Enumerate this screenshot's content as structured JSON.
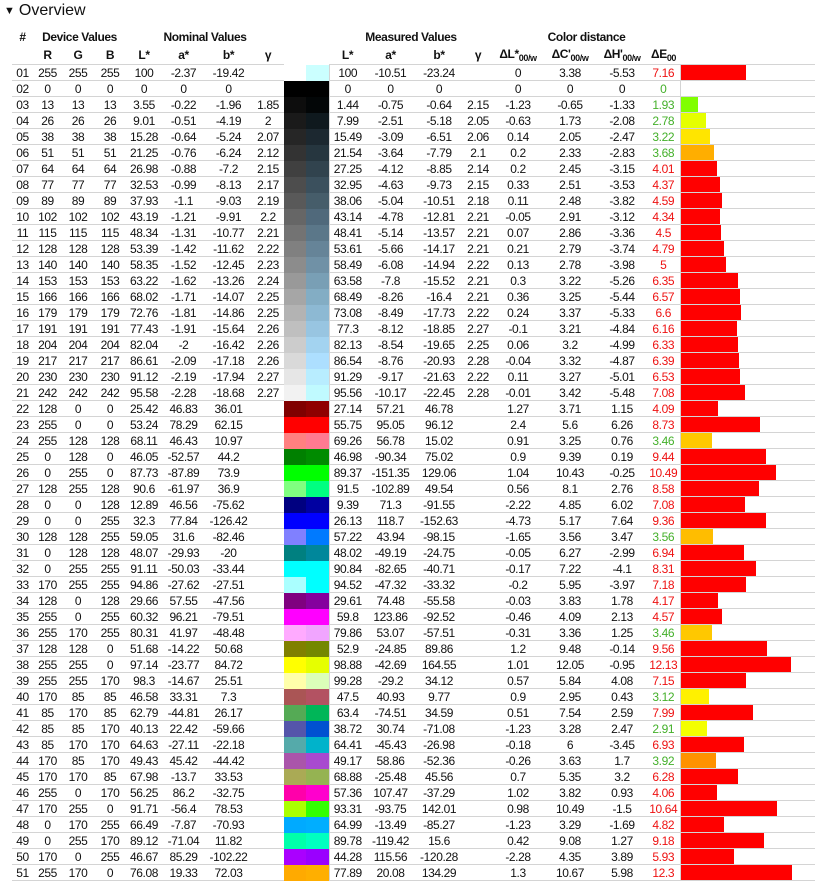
{
  "section": {
    "toggle_icon": "triangle-down-icon",
    "title": "Overview"
  },
  "groups": {
    "num": "#",
    "device": "Device Values",
    "nominal": "Nominal Values",
    "measured": "Measured Values",
    "distance": "Color distance"
  },
  "columns": [
    {
      "main": "R"
    },
    {
      "main": "G"
    },
    {
      "main": "B"
    },
    {
      "main": "L*"
    },
    {
      "main": "a*"
    },
    {
      "main": "b*"
    },
    {
      "main": "γ"
    },
    {
      "main": ""
    },
    {
      "main": "L*"
    },
    {
      "main": "a*"
    },
    {
      "main": "b*"
    },
    {
      "main": "γ"
    },
    {
      "main": "ΔL*",
      "sub": "00/w"
    },
    {
      "main": "ΔC'",
      "sub": "00/w"
    },
    {
      "main": "ΔH'",
      "sub": "00/w"
    },
    {
      "main": "ΔE",
      "sub": "00"
    }
  ],
  "colors": {
    "good": "#44b02a",
    "bad": "#ee1111",
    "bar_red": "#ff0000",
    "grid": "#d4d4d4"
  },
  "rows": [
    [
      "01",
      "255",
      "255",
      "255",
      "100",
      "-2.37",
      "-19.42",
      "",
      "100",
      "-10.51",
      "-23.24",
      "",
      "0",
      "3.38",
      "-5.53",
      "7.16"
    ],
    [
      "02",
      "0",
      "0",
      "0",
      "0",
      "0",
      "0",
      "",
      "0",
      "0",
      "0",
      "",
      "0",
      "0",
      "0",
      "0"
    ],
    [
      "03",
      "13",
      "13",
      "13",
      "3.55",
      "-0.22",
      "-1.96",
      "1.85",
      "1.44",
      "-0.75",
      "-0.64",
      "2.15",
      "-1.23",
      "-0.65",
      "-1.33",
      "1.93"
    ],
    [
      "04",
      "26",
      "26",
      "26",
      "9.01",
      "-0.51",
      "-4.19",
      "2",
      "7.99",
      "-2.51",
      "-5.18",
      "2.05",
      "-0.63",
      "1.73",
      "-2.08",
      "2.78"
    ],
    [
      "05",
      "38",
      "38",
      "38",
      "15.28",
      "-0.64",
      "-5.24",
      "2.07",
      "15.49",
      "-3.09",
      "-6.51",
      "2.06",
      "0.14",
      "2.05",
      "-2.47",
      "3.22"
    ],
    [
      "06",
      "51",
      "51",
      "51",
      "21.25",
      "-0.76",
      "-6.24",
      "2.12",
      "21.54",
      "-3.64",
      "-7.79",
      "2.1",
      "0.2",
      "2.33",
      "-2.83",
      "3.68"
    ],
    [
      "07",
      "64",
      "64",
      "64",
      "26.98",
      "-0.88",
      "-7.2",
      "2.15",
      "27.25",
      "-4.12",
      "-8.85",
      "2.14",
      "0.2",
      "2.45",
      "-3.15",
      "4.01"
    ],
    [
      "08",
      "77",
      "77",
      "77",
      "32.53",
      "-0.99",
      "-8.13",
      "2.17",
      "32.95",
      "-4.63",
      "-9.73",
      "2.15",
      "0.33",
      "2.51",
      "-3.53",
      "4.37"
    ],
    [
      "09",
      "89",
      "89",
      "89",
      "37.93",
      "-1.1",
      "-9.03",
      "2.19",
      "38.06",
      "-5.04",
      "-10.51",
      "2.18",
      "0.11",
      "2.48",
      "-3.82",
      "4.59"
    ],
    [
      "10",
      "102",
      "102",
      "102",
      "43.19",
      "-1.21",
      "-9.91",
      "2.2",
      "43.14",
      "-4.78",
      "-12.81",
      "2.21",
      "-0.05",
      "2.91",
      "-3.12",
      "4.34"
    ],
    [
      "11",
      "115",
      "115",
      "115",
      "48.34",
      "-1.31",
      "-10.77",
      "2.21",
      "48.41",
      "-5.14",
      "-13.57",
      "2.21",
      "0.07",
      "2.86",
      "-3.36",
      "4.5"
    ],
    [
      "12",
      "128",
      "128",
      "128",
      "53.39",
      "-1.42",
      "-11.62",
      "2.22",
      "53.61",
      "-5.66",
      "-14.17",
      "2.21",
      "0.21",
      "2.79",
      "-3.74",
      "4.79"
    ],
    [
      "13",
      "140",
      "140",
      "140",
      "58.35",
      "-1.52",
      "-12.45",
      "2.23",
      "58.49",
      "-6.08",
      "-14.94",
      "2.22",
      "0.13",
      "2.78",
      "-3.98",
      "5"
    ],
    [
      "14",
      "153",
      "153",
      "153",
      "63.22",
      "-1.62",
      "-13.26",
      "2.24",
      "63.58",
      "-7.8",
      "-15.52",
      "2.21",
      "0.3",
      "3.22",
      "-5.26",
      "6.35"
    ],
    [
      "15",
      "166",
      "166",
      "166",
      "68.02",
      "-1.71",
      "-14.07",
      "2.25",
      "68.49",
      "-8.26",
      "-16.4",
      "2.21",
      "0.36",
      "3.25",
      "-5.44",
      "6.57"
    ],
    [
      "16",
      "179",
      "179",
      "179",
      "72.76",
      "-1.81",
      "-14.86",
      "2.25",
      "73.08",
      "-8.49",
      "-17.73",
      "2.22",
      "0.24",
      "3.37",
      "-5.33",
      "6.6"
    ],
    [
      "17",
      "191",
      "191",
      "191",
      "77.43",
      "-1.91",
      "-15.64",
      "2.26",
      "77.3",
      "-8.12",
      "-18.85",
      "2.27",
      "-0.1",
      "3.21",
      "-4.84",
      "6.16"
    ],
    [
      "18",
      "204",
      "204",
      "204",
      "82.04",
      "-2",
      "-16.42",
      "2.26",
      "82.13",
      "-8.54",
      "-19.65",
      "2.25",
      "0.06",
      "3.2",
      "-4.99",
      "6.33"
    ],
    [
      "19",
      "217",
      "217",
      "217",
      "86.61",
      "-2.09",
      "-17.18",
      "2.26",
      "86.54",
      "-8.76",
      "-20.93",
      "2.28",
      "-0.04",
      "3.32",
      "-4.87",
      "6.39"
    ],
    [
      "20",
      "230",
      "230",
      "230",
      "91.12",
      "-2.19",
      "-17.94",
      "2.27",
      "91.29",
      "-9.17",
      "-21.63",
      "2.22",
      "0.11",
      "3.27",
      "-5.01",
      "6.53"
    ],
    [
      "21",
      "242",
      "242",
      "242",
      "95.58",
      "-2.28",
      "-18.68",
      "2.27",
      "95.56",
      "-10.17",
      "-22.45",
      "2.28",
      "-0.01",
      "3.42",
      "-5.48",
      "7.08"
    ],
    [
      "22",
      "128",
      "0",
      "0",
      "25.42",
      "46.83",
      "36.01",
      "",
      "27.14",
      "57.21",
      "46.78",
      "",
      "1.27",
      "3.71",
      "1.15",
      "4.09"
    ],
    [
      "23",
      "255",
      "0",
      "0",
      "53.24",
      "78.29",
      "62.15",
      "",
      "55.75",
      "95.05",
      "96.12",
      "",
      "2.4",
      "5.6",
      "6.26",
      "8.73"
    ],
    [
      "24",
      "255",
      "128",
      "128",
      "68.11",
      "46.43",
      "10.97",
      "",
      "69.26",
      "56.78",
      "15.02",
      "",
      "0.91",
      "3.25",
      "0.76",
      "3.46"
    ],
    [
      "25",
      "0",
      "128",
      "0",
      "46.05",
      "-52.57",
      "44.2",
      "",
      "46.98",
      "-90.34",
      "75.02",
      "",
      "0.9",
      "9.39",
      "0.19",
      "9.44"
    ],
    [
      "26",
      "0",
      "255",
      "0",
      "87.73",
      "-87.89",
      "73.9",
      "",
      "89.37",
      "-151.35",
      "129.06",
      "",
      "1.04",
      "10.43",
      "-0.25",
      "10.49"
    ],
    [
      "27",
      "128",
      "255",
      "128",
      "90.6",
      "-61.97",
      "36.9",
      "",
      "91.5",
      "-102.89",
      "49.54",
      "",
      "0.56",
      "8.1",
      "2.76",
      "8.58"
    ],
    [
      "28",
      "0",
      "0",
      "128",
      "12.89",
      "46.56",
      "-75.62",
      "",
      "9.39",
      "71.3",
      "-91.55",
      "",
      "-2.22",
      "4.85",
      "6.02",
      "7.08"
    ],
    [
      "29",
      "0",
      "0",
      "255",
      "32.3",
      "77.84",
      "-126.42",
      "",
      "26.13",
      "118.7",
      "-152.63",
      "",
      "-4.73",
      "5.17",
      "7.64",
      "9.36"
    ],
    [
      "30",
      "128",
      "128",
      "255",
      "59.05",
      "31.6",
      "-82.46",
      "",
      "57.22",
      "43.94",
      "-98.15",
      "",
      "-1.65",
      "3.56",
      "3.47",
      "3.56"
    ],
    [
      "31",
      "0",
      "128",
      "128",
      "48.07",
      "-29.93",
      "-20",
      "",
      "48.02",
      "-49.19",
      "-24.75",
      "",
      "-0.05",
      "6.27",
      "-2.99",
      "6.94"
    ],
    [
      "32",
      "0",
      "255",
      "255",
      "91.11",
      "-50.03",
      "-33.44",
      "",
      "90.84",
      "-82.65",
      "-40.71",
      "",
      "-0.17",
      "7.22",
      "-4.1",
      "8.31"
    ],
    [
      "33",
      "170",
      "255",
      "255",
      "94.86",
      "-27.62",
      "-27.51",
      "",
      "94.52",
      "-47.32",
      "-33.32",
      "",
      "-0.2",
      "5.95",
      "-3.97",
      "7.18"
    ],
    [
      "34",
      "128",
      "0",
      "128",
      "29.66",
      "57.55",
      "-47.56",
      "",
      "29.61",
      "74.48",
      "-55.58",
      "",
      "-0.03",
      "3.83",
      "1.78",
      "4.17"
    ],
    [
      "35",
      "255",
      "0",
      "255",
      "60.32",
      "96.21",
      "-79.51",
      "",
      "59.8",
      "123.86",
      "-92.52",
      "",
      "-0.46",
      "4.09",
      "2.13",
      "4.57"
    ],
    [
      "36",
      "255",
      "170",
      "255",
      "80.31",
      "41.97",
      "-48.48",
      "",
      "79.86",
      "53.07",
      "-57.51",
      "",
      "-0.31",
      "3.36",
      "1.25",
      "3.46"
    ],
    [
      "37",
      "128",
      "128",
      "0",
      "51.68",
      "-14.22",
      "50.68",
      "",
      "52.9",
      "-24.85",
      "89.86",
      "",
      "1.2",
      "9.48",
      "-0.14",
      "9.56"
    ],
    [
      "38",
      "255",
      "255",
      "0",
      "97.14",
      "-23.77",
      "84.72",
      "",
      "98.88",
      "-42.69",
      "164.55",
      "",
      "1.01",
      "12.05",
      "-0.95",
      "12.13"
    ],
    [
      "39",
      "255",
      "255",
      "170",
      "98.3",
      "-14.67",
      "25.51",
      "",
      "99.28",
      "-29.2",
      "34.12",
      "",
      "0.57",
      "5.84",
      "4.08",
      "7.15"
    ],
    [
      "40",
      "170",
      "85",
      "85",
      "46.58",
      "33.31",
      "7.3",
      "",
      "47.5",
      "40.93",
      "9.77",
      "",
      "0.9",
      "2.95",
      "0.43",
      "3.12"
    ],
    [
      "41",
      "85",
      "170",
      "85",
      "62.79",
      "-44.81",
      "26.17",
      "",
      "63.4",
      "-74.51",
      "34.59",
      "",
      "0.51",
      "7.54",
      "2.59",
      "7.99"
    ],
    [
      "42",
      "85",
      "85",
      "170",
      "40.13",
      "22.42",
      "-59.66",
      "",
      "38.72",
      "30.74",
      "-71.08",
      "",
      "-1.23",
      "3.28",
      "2.47",
      "2.91"
    ],
    [
      "43",
      "85",
      "170",
      "170",
      "64.63",
      "-27.11",
      "-22.18",
      "",
      "64.41",
      "-45.43",
      "-26.98",
      "",
      "-0.18",
      "6",
      "-3.45",
      "6.93"
    ],
    [
      "44",
      "170",
      "85",
      "170",
      "49.43",
      "45.42",
      "-44.42",
      "",
      "49.17",
      "58.86",
      "-52.36",
      "",
      "-0.26",
      "3.63",
      "1.7",
      "3.92"
    ],
    [
      "45",
      "170",
      "170",
      "85",
      "67.98",
      "-13.7",
      "33.53",
      "",
      "68.88",
      "-25.48",
      "45.56",
      "",
      "0.7",
      "5.35",
      "3.2",
      "6.28"
    ],
    [
      "46",
      "255",
      "0",
      "170",
      "56.25",
      "86.2",
      "-32.75",
      "",
      "57.36",
      "107.47",
      "-37.29",
      "",
      "1.02",
      "3.82",
      "0.93",
      "4.06"
    ],
    [
      "47",
      "170",
      "255",
      "0",
      "91.71",
      "-56.4",
      "78.53",
      "",
      "93.31",
      "-93.75",
      "142.01",
      "",
      "0.98",
      "10.49",
      "-1.5",
      "10.64"
    ],
    [
      "48",
      "0",
      "170",
      "255",
      "66.49",
      "-7.87",
      "-70.93",
      "",
      "64.99",
      "-13.49",
      "-85.27",
      "",
      "-1.23",
      "3.29",
      "-1.69",
      "4.82"
    ],
    [
      "49",
      "0",
      "255",
      "170",
      "89.12",
      "-71.04",
      "11.82",
      "",
      "89.78",
      "-119.42",
      "15.6",
      "",
      "0.42",
      "9.08",
      "1.27",
      "9.18"
    ],
    [
      "50",
      "170",
      "0",
      "255",
      "46.67",
      "85.29",
      "-102.22",
      "",
      "44.28",
      "115.56",
      "-120.28",
      "",
      "-2.28",
      "4.35",
      "3.89",
      "5.93"
    ],
    [
      "51",
      "255",
      "170",
      "0",
      "76.08",
      "19.33",
      "72.03",
      "",
      "77.89",
      "20.08",
      "134.29",
      "",
      "1.3",
      "10.67",
      "5.98",
      "12.3"
    ]
  ]
}
